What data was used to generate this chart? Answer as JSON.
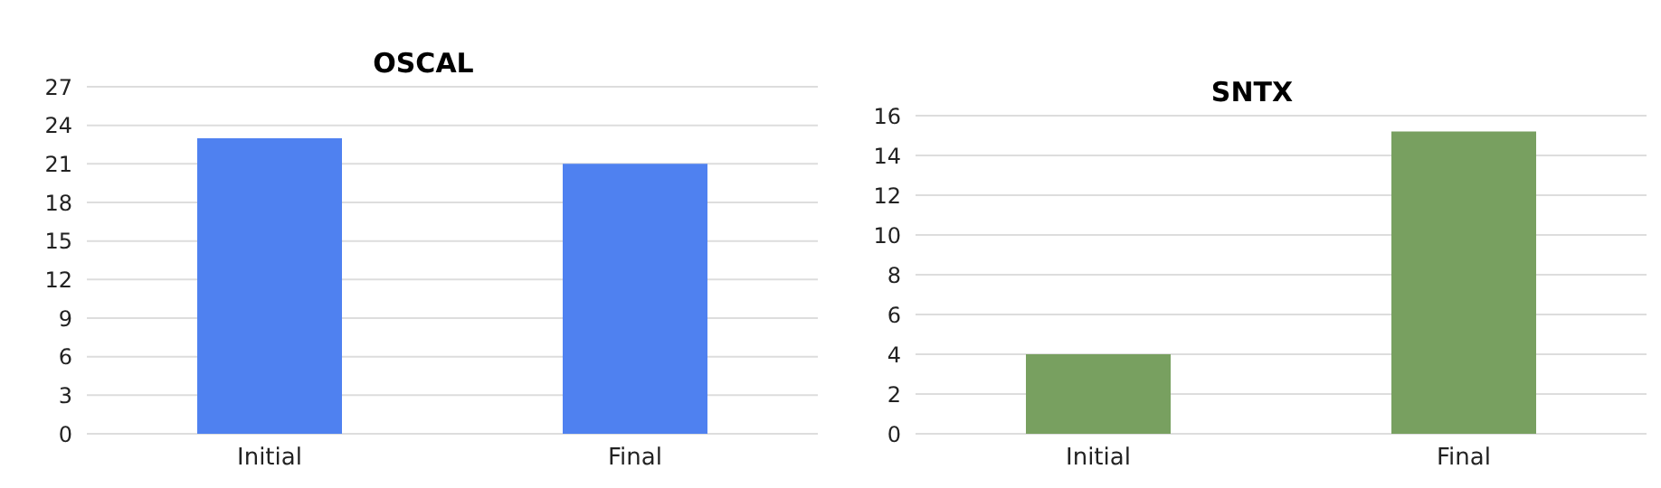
{
  "chart_data": [
    {
      "type": "bar",
      "title": "OSCAL",
      "categories": [
        "Initial",
        "Final"
      ],
      "values": [
        23,
        21
      ],
      "color": "#4f81f0",
      "ylim": [
        0,
        27
      ],
      "yticks": [
        0,
        3,
        6,
        9,
        12,
        15,
        18,
        21,
        24,
        27
      ],
      "grid": "y"
    },
    {
      "type": "bar",
      "title": "SNTX",
      "categories": [
        "Initial",
        "Final"
      ],
      "values": [
        4,
        15.2
      ],
      "color": "#78a060",
      "ylim": [
        0,
        16
      ],
      "yticks": [
        0,
        2,
        4,
        6,
        8,
        10,
        12,
        14,
        16
      ],
      "grid": "y"
    }
  ]
}
